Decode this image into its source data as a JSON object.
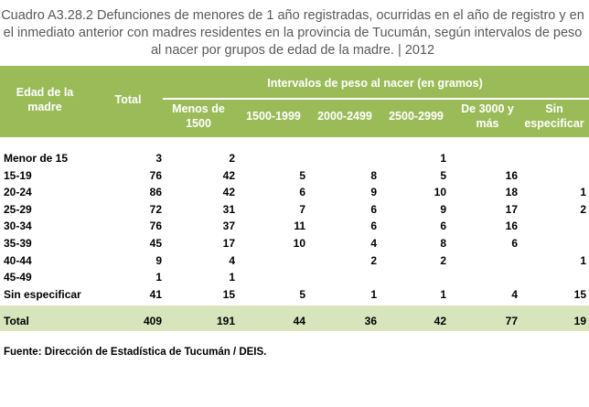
{
  "title": "Cuadro A3.28.2 Defunciones de menores de 1 año registradas, ocurridas en el año de registro y en el inmediato anterior con madres residentes en la provincia de Tucumán, según intervalos de peso al nacer por grupos de edad de la madre. | 2012",
  "header": {
    "age_group": "Edad de la madre",
    "total": "Total",
    "intervals_title": "Intervalos de peso al nacer (en gramos)",
    "columns": [
      "Menos de 1500",
      "1500-1999",
      "2000-2499",
      "2500-2999",
      "De 3000 y más",
      "Sin especificar"
    ]
  },
  "rows": [
    {
      "label": "Menor de 15",
      "values": [
        "3",
        "2",
        "",
        "",
        "1",
        "",
        ""
      ]
    },
    {
      "label": "15-19",
      "values": [
        "76",
        "42",
        "5",
        "8",
        "5",
        "16",
        ""
      ]
    },
    {
      "label": "20-24",
      "values": [
        "86",
        "42",
        "6",
        "9",
        "10",
        "18",
        "1"
      ]
    },
    {
      "label": "25-29",
      "values": [
        "72",
        "31",
        "7",
        "6",
        "9",
        "17",
        "2"
      ]
    },
    {
      "label": "30-34",
      "values": [
        "76",
        "37",
        "11",
        "6",
        "6",
        "16",
        ""
      ]
    },
    {
      "label": "35-39",
      "values": [
        "45",
        "17",
        "10",
        "4",
        "8",
        "6",
        ""
      ]
    },
    {
      "label": "40-44",
      "values": [
        "9",
        "4",
        "",
        "2",
        "2",
        "",
        "1"
      ]
    },
    {
      "label": "45-49",
      "values": [
        "1",
        "1",
        "",
        "",
        "",
        "",
        ""
      ]
    },
    {
      "label": "Sin especificar",
      "values": [
        "41",
        "15",
        "5",
        "1",
        "1",
        "4",
        "15"
      ]
    }
  ],
  "total_row": {
    "label": "Total",
    "values": [
      "409",
      "191",
      "44",
      "36",
      "42",
      "77",
      "19"
    ]
  },
  "footer": "Fuente: Dirección de Estadística de Tucumán / DEIS.",
  "colors": {
    "header_bg": "#9bbb59",
    "total_bg": "#d7e4bc",
    "title_text": "#595959"
  }
}
